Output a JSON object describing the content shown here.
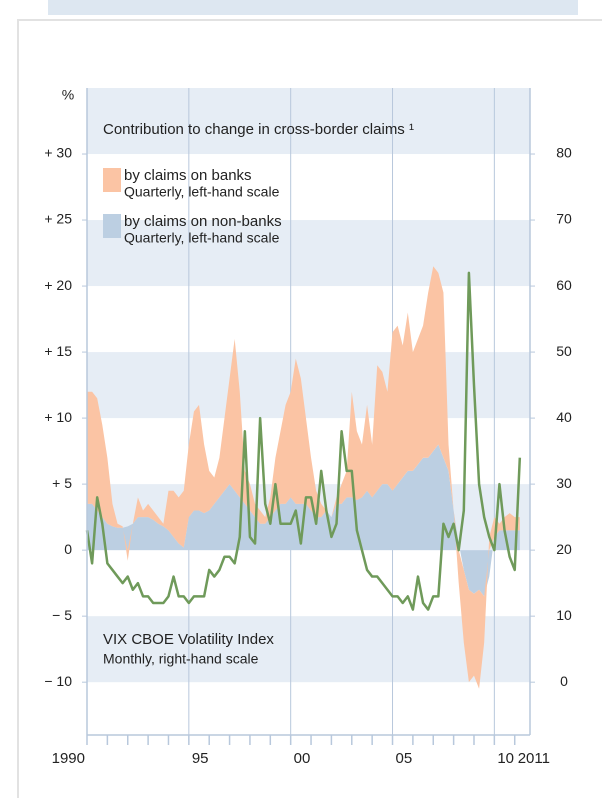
{
  "chart_data": {
    "type": "area_line",
    "title": "Contribution to change in cross-border claims ¹",
    "y_unit": "%",
    "xlim": [
      1990,
      2011.75
    ],
    "xticks": [
      {
        "value": 1990,
        "label": "1990"
      },
      {
        "value": 1995,
        "label": "95"
      },
      {
        "value": 2000,
        "label": "00"
      },
      {
        "value": 2005,
        "label": "05"
      },
      {
        "value": 2010,
        "label": "10"
      },
      {
        "value": 2011,
        "label": "2011"
      }
    ],
    "ylim": [
      -14,
      35
    ],
    "yticks": [
      {
        "value": 30,
        "label": "+ 30"
      },
      {
        "value": 25,
        "label": "+ 25"
      },
      {
        "value": 20,
        "label": "+ 20"
      },
      {
        "value": 15,
        "label": "+ 15"
      },
      {
        "value": 10,
        "label": "+ 10"
      },
      {
        "value": 5,
        "label": "+  5"
      },
      0,
      {
        "value": -5,
        "label": "− 5"
      },
      {
        "value": -10,
        "label": "− 10"
      }
    ],
    "y2lim": [
      -8,
      90
    ],
    "y2ticks": [
      0,
      10,
      20,
      30,
      40,
      50,
      60,
      70,
      80
    ],
    "x": [
      1990,
      1990.25,
      1990.5,
      1990.75,
      1991,
      1991.25,
      1991.5,
      1991.75,
      1992,
      1992.25,
      1992.5,
      1992.75,
      1993,
      1993.25,
      1993.5,
      1993.75,
      1994,
      1994.25,
      1994.5,
      1994.75,
      1995,
      1995.25,
      1995.5,
      1995.75,
      1996,
      1996.25,
      1996.5,
      1996.75,
      1997,
      1997.25,
      1997.5,
      1997.75,
      1998,
      1998.25,
      1998.5,
      1998.75,
      1999,
      1999.25,
      1999.5,
      1999.75,
      2000,
      2000.25,
      2000.5,
      2000.75,
      2001,
      2001.25,
      2001.5,
      2001.75,
      2002,
      2002.25,
      2002.5,
      2002.75,
      2003,
      2003.25,
      2003.5,
      2003.75,
      2004,
      2004.25,
      2004.5,
      2004.75,
      2005,
      2005.25,
      2005.5,
      2005.75,
      2006,
      2006.25,
      2006.5,
      2006.75,
      2007,
      2007.25,
      2007.5,
      2007.75,
      2008,
      2008.25,
      2008.5,
      2008.75,
      2009,
      2009.25,
      2009.5,
      2009.75,
      2010,
      2010.25,
      2010.5,
      2010.75,
      2011,
      2011.25
    ],
    "series": [
      {
        "name": "by claims on non-banks",
        "note": "Quarterly, left-hand scale",
        "color": "#bccfe2",
        "kind": "area",
        "values": [
          3.5,
          3.5,
          3,
          2.5,
          2,
          1.8,
          1.7,
          1.7,
          1.8,
          2,
          2.5,
          2.5,
          2.5,
          2.3,
          2,
          1.8,
          1.5,
          1,
          0.5,
          0.2,
          2.5,
          3,
          3,
          2.8,
          3,
          3.5,
          4,
          4.5,
          5,
          4.5,
          4,
          3.5,
          3,
          2.5,
          2,
          2,
          2.5,
          3,
          3.5,
          3.5,
          4,
          3.5,
          3.5,
          3.5,
          3,
          2.5,
          2.5,
          3,
          2.5,
          3.5,
          3.5,
          4,
          4,
          3.8,
          4,
          4.5,
          4,
          4.5,
          5,
          5,
          4.5,
          5,
          5.5,
          6,
          6,
          6.5,
          7,
          7,
          7.5,
          8,
          7,
          6,
          3,
          0.5,
          -1.5,
          -3,
          -3.3,
          -3,
          -3.5,
          -2,
          1,
          1.5,
          1.5,
          1.5,
          1.5,
          1.5
        ]
      },
      {
        "name": "by claims on banks",
        "note": "Quarterly, left-hand scale",
        "color": "#fbc4a4",
        "kind": "area",
        "values": [
          8.5,
          8.5,
          8.5,
          7,
          5,
          1.7,
          0.3,
          0.1,
          -0.8,
          0,
          1.5,
          0.5,
          1,
          0.7,
          0.5,
          0.2,
          3,
          3.5,
          3.5,
          4.3,
          5.5,
          7.5,
          8,
          5.2,
          3,
          2,
          3,
          5.5,
          8,
          11.5,
          8,
          2.5,
          2,
          1,
          1,
          0.5,
          1.5,
          4,
          5.5,
          7.5,
          8,
          11,
          9.5,
          6.5,
          4,
          2,
          1,
          0,
          0,
          0.5,
          1.5,
          2,
          8,
          5.2,
          4,
          6.5,
          4,
          9.5,
          8.5,
          7,
          12,
          12,
          10,
          12,
          9,
          9.5,
          10,
          12.5,
          14,
          13,
          12.5,
          2,
          0,
          -2.5,
          -5.5,
          -7,
          -6.2,
          -7.5,
          -3.5,
          1,
          1.5,
          0.5,
          1,
          1.3,
          1,
          1
        ]
      },
      {
        "name": "VIX CBOE Volatility Index",
        "note": "Monthly, right-hand scale",
        "color": "#6f9a5a",
        "kind": "line",
        "axis": "y2",
        "values": [
          23,
          18,
          28,
          24,
          18,
          17,
          16,
          15,
          16,
          14,
          15,
          13,
          13,
          12,
          12,
          12,
          13,
          16,
          13,
          13,
          12,
          13,
          13,
          13,
          17,
          16,
          17,
          19,
          19,
          18,
          22,
          38,
          22,
          21,
          40,
          27,
          24,
          30,
          24,
          24,
          24,
          26,
          21,
          28,
          28,
          24,
          32,
          26,
          22,
          24,
          38,
          32,
          32,
          23,
          20,
          17,
          16,
          16,
          15,
          14,
          13,
          13,
          12,
          13,
          11,
          16,
          12,
          11,
          13,
          13,
          24,
          22,
          24,
          20,
          26,
          62,
          45,
          30,
          25,
          22,
          20,
          30,
          23,
          19,
          17,
          34
        ]
      }
    ]
  }
}
